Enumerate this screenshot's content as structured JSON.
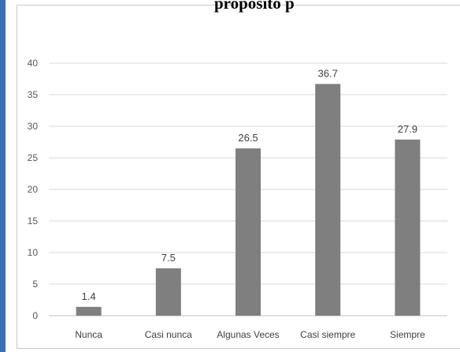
{
  "header": {
    "title_fragment": "propósito p"
  },
  "colors": {
    "bar": "#7f7f7f",
    "grid": "#d9d9d9",
    "frame_accent": "#3b6fb6"
  },
  "chart_data": {
    "type": "bar",
    "title": "",
    "xlabel": "",
    "ylabel": "",
    "categories": [
      "Nunca",
      "Casi nunca",
      "Algunas Veces",
      "Casi siempre",
      "Siempre"
    ],
    "values": [
      1.4,
      7.5,
      26.5,
      36.7,
      27.9
    ],
    "ylim": [
      0,
      40
    ],
    "yticks": [
      0,
      5,
      10,
      15,
      20,
      25,
      30,
      35,
      40
    ],
    "grid": true,
    "legend": "none"
  }
}
